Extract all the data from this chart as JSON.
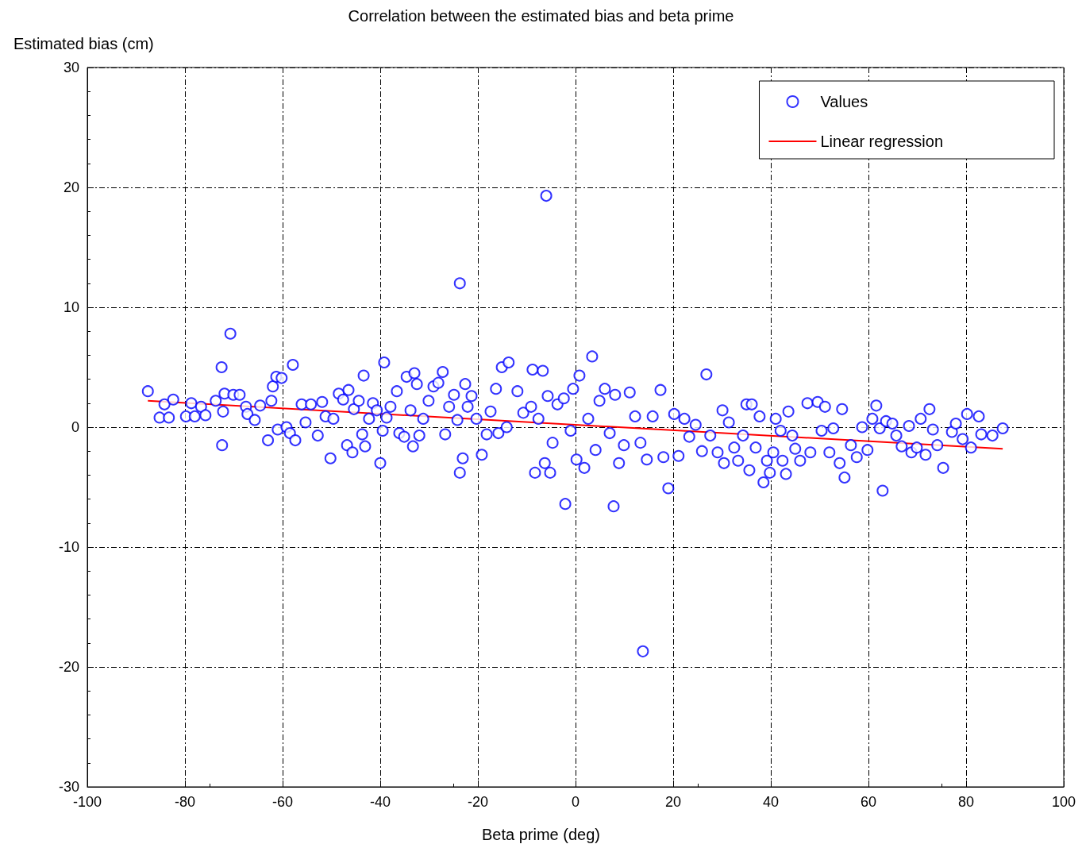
{
  "chart_data": {
    "type": "scatter",
    "title": "Correlation between the estimated bias and beta prime",
    "xlabel": "Beta prime (deg)",
    "ylabel": "Estimated bias (cm)",
    "xlim": [
      -100,
      100
    ],
    "xticks": [
      -100,
      -80,
      -60,
      -40,
      -20,
      0,
      20,
      40,
      60,
      80,
      100
    ],
    "ylim": [
      -30,
      30
    ],
    "yticks": [
      -30,
      -20,
      -10,
      0,
      10,
      20,
      30
    ],
    "grid": true,
    "legend": "top right",
    "series": [
      {
        "name": "Values",
        "color": "#0000ff",
        "marker": "circle",
        "x": [
          -87.6,
          -85.2,
          -84.2,
          -83.3,
          -82.4,
          -79.8,
          -78.7,
          -78.0,
          -76.7,
          -75.8,
          -73.7,
          -72.5,
          -72.4,
          -72.2,
          -71.9,
          -70.7,
          -70.1,
          -68.8,
          -67.5,
          -67.2,
          -65.7,
          -64.6,
          -63.0,
          -62.3,
          -62.0,
          -61.3,
          -61.0,
          -60.2,
          -59.2,
          -58.5,
          -57.9,
          -57.4,
          -56.1,
          -55.3,
          -54.2,
          -52.8,
          -51.9,
          -51.2,
          -50.2,
          -49.6,
          -48.5,
          -47.6,
          -46.8,
          -46.5,
          -45.7,
          -45.4,
          -44.4,
          -43.7,
          -43.4,
          -43.1,
          -42.3,
          -41.5,
          -40.7,
          -40.0,
          -39.5,
          -39.2,
          -38.7,
          -37.9,
          -36.6,
          -36.1,
          -35.1,
          -34.6,
          -33.8,
          -33.3,
          -33.0,
          -32.5,
          -32.0,
          -31.2,
          -30.1,
          -29.1,
          -28.1,
          -27.2,
          -26.7,
          -25.9,
          -24.9,
          -24.2,
          -23.7,
          -23.7,
          -23.1,
          -22.6,
          -22.1,
          -21.3,
          -20.3,
          -19.2,
          -18.2,
          -17.4,
          -16.3,
          -15.8,
          -15.1,
          -14.1,
          -13.7,
          -11.9,
          -10.7,
          -9.1,
          -8.8,
          -8.3,
          -7.6,
          -6.7,
          -6.3,
          -6.0,
          -5.7,
          -5.2,
          -4.7,
          -3.7,
          -2.4,
          -2.1,
          -1.0,
          -0.5,
          0.2,
          0.8,
          1.8,
          2.6,
          3.4,
          4.1,
          4.9,
          6.0,
          7.0,
          7.8,
          8.1,
          8.9,
          9.9,
          11.1,
          12.2,
          13.3,
          13.8,
          14.6,
          15.8,
          17.4,
          18.0,
          19.0,
          20.2,
          21.1,
          22.3,
          23.3,
          24.6,
          25.9,
          26.8,
          27.6,
          29.1,
          30.1,
          30.4,
          31.4,
          32.5,
          33.3,
          34.3,
          35.0,
          35.6,
          36.1,
          36.9,
          37.7,
          38.5,
          39.2,
          39.8,
          40.5,
          41.0,
          42.0,
          42.4,
          43.1,
          43.6,
          44.4,
          45.0,
          46.0,
          47.5,
          48.1,
          49.6,
          50.4,
          51.1,
          52.0,
          52.8,
          54.1,
          54.6,
          55.1,
          56.4,
          57.6,
          58.7,
          59.8,
          60.8,
          61.6,
          62.3,
          62.9,
          63.6,
          64.9,
          65.7,
          66.8,
          68.3,
          68.8,
          69.9,
          70.7,
          71.7,
          72.5,
          73.2,
          74.1,
          75.3,
          77.1,
          77.9,
          79.3,
          80.2,
          81.0,
          82.6,
          83.1,
          85.4,
          87.5
        ],
        "values": [
          3.0,
          0.8,
          1.9,
          0.8,
          2.3,
          0.9,
          2.0,
          0.9,
          1.7,
          1.0,
          2.2,
          5.0,
          -1.5,
          1.3,
          2.8,
          7.8,
          2.7,
          2.7,
          1.7,
          1.1,
          0.6,
          1.8,
          -1.1,
          2.2,
          3.4,
          4.2,
          -0.2,
          4.1,
          0,
          -0.5,
          5.2,
          -1.1,
          1.9,
          0.4,
          1.9,
          -0.7,
          2.1,
          0.9,
          -2.6,
          0.7,
          2.8,
          2.3,
          -1.5,
          3.1,
          -2.1,
          1.5,
          2.2,
          -0.6,
          4.3,
          -1.6,
          0.7,
          2.0,
          1.4,
          -3.0,
          -0.3,
          5.4,
          0.8,
          1.7,
          3.0,
          -0.5,
          -0.8,
          4.2,
          1.4,
          -1.6,
          4.5,
          3.6,
          -0.7,
          0.7,
          2.2,
          3.4,
          3.7,
          4.6,
          -0.6,
          1.7,
          2.7,
          0.6,
          -3.8,
          12.0,
          -2.6,
          3.6,
          1.7,
          2.6,
          0.7,
          -2.3,
          -0.6,
          1.3,
          3.2,
          -0.5,
          5.0,
          0,
          5.4,
          3.0,
          1.2,
          1.7,
          4.8,
          -3.8,
          0.7,
          4.7,
          -3.0,
          19.3,
          2.6,
          -3.8,
          -1.3,
          1.9,
          2.4,
          -6.4,
          -0.3,
          3.2,
          -2.7,
          4.3,
          -3.4,
          0.7,
          5.9,
          -1.9,
          2.2,
          3.2,
          -0.5,
          -6.6,
          2.7,
          -3.0,
          -1.5,
          2.9,
          0.9,
          -1.3,
          -18.7,
          -2.7,
          0.9,
          3.1,
          -2.5,
          -5.1,
          1.1,
          -2.4,
          0.7,
          -0.8,
          0.2,
          -2.0,
          4.4,
          -0.7,
          -2.1,
          1.4,
          -3.0,
          0.4,
          -1.7,
          -2.8,
          -0.7,
          1.9,
          -3.6,
          1.9,
          -1.7,
          0.9,
          -4.6,
          -2.8,
          -3.8,
          -2.1,
          0.7,
          -0.3,
          -2.8,
          -3.9,
          1.3,
          -0.7,
          -1.8,
          -2.8,
          2.0,
          -2.1,
          2.1,
          -0.3,
          1.7,
          -2.1,
          -0.1,
          -3.0,
          1.5,
          -4.2,
          -1.5,
          -2.5,
          0,
          -1.9,
          0.7,
          1.8,
          -0.1,
          -5.3,
          0.5,
          0.3,
          -0.7,
          -1.6,
          0.1,
          -2.1,
          -1.7,
          0.7,
          -2.3,
          1.5,
          -0.2,
          -1.5,
          -3.4,
          -0.4,
          0.3,
          -1.0,
          1.1,
          -1.7,
          0.9,
          -0.6,
          -0.7,
          -0.1
        ]
      },
      {
        "name": "Linear regression",
        "color": "#ff0000",
        "type": "line",
        "marker": "none",
        "x": [
          -87.6,
          87.5
        ],
        "values": [
          2.2,
          -1.8
        ]
      }
    ]
  }
}
